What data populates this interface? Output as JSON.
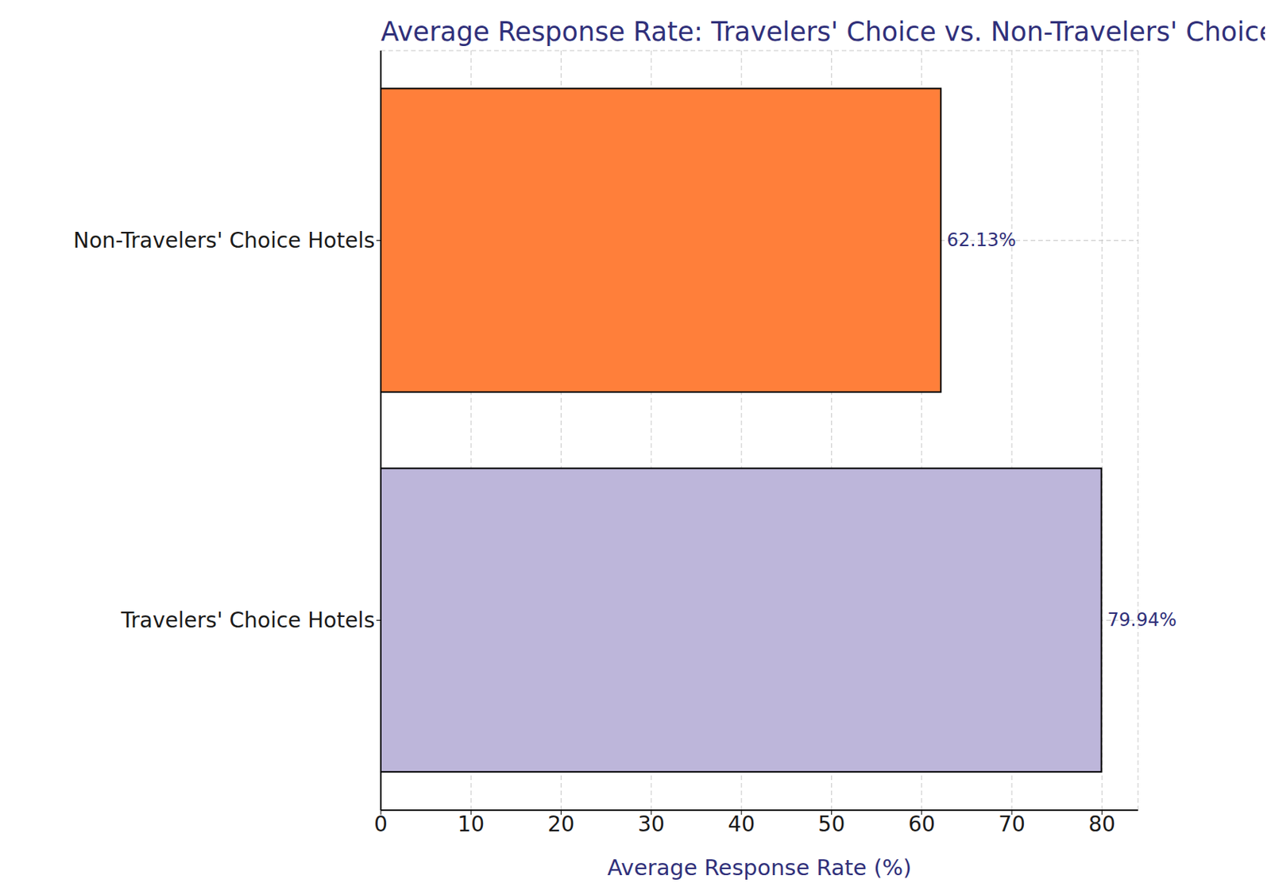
{
  "chart_data": {
    "type": "bar",
    "title": "Average Response Rate: Travelers' Choice vs. Non-Travelers' Choice",
    "orientation": "horizontal",
    "categories": [
      "Non-Travelers' Choice Hotels",
      "Travelers' Choice Hotels"
    ],
    "values": [
      62.13,
      79.94
    ],
    "value_labels": [
      "62.13%",
      "79.94%"
    ],
    "colors": [
      "#ff7f3a",
      "#bdb6da"
    ],
    "x_label": "Average Response Rate (%)",
    "xlim": [
      0,
      84
    ],
    "xticks": [
      0,
      10,
      20,
      30,
      40,
      50,
      60,
      70,
      80
    ],
    "grid": true,
    "data_labels": true
  }
}
